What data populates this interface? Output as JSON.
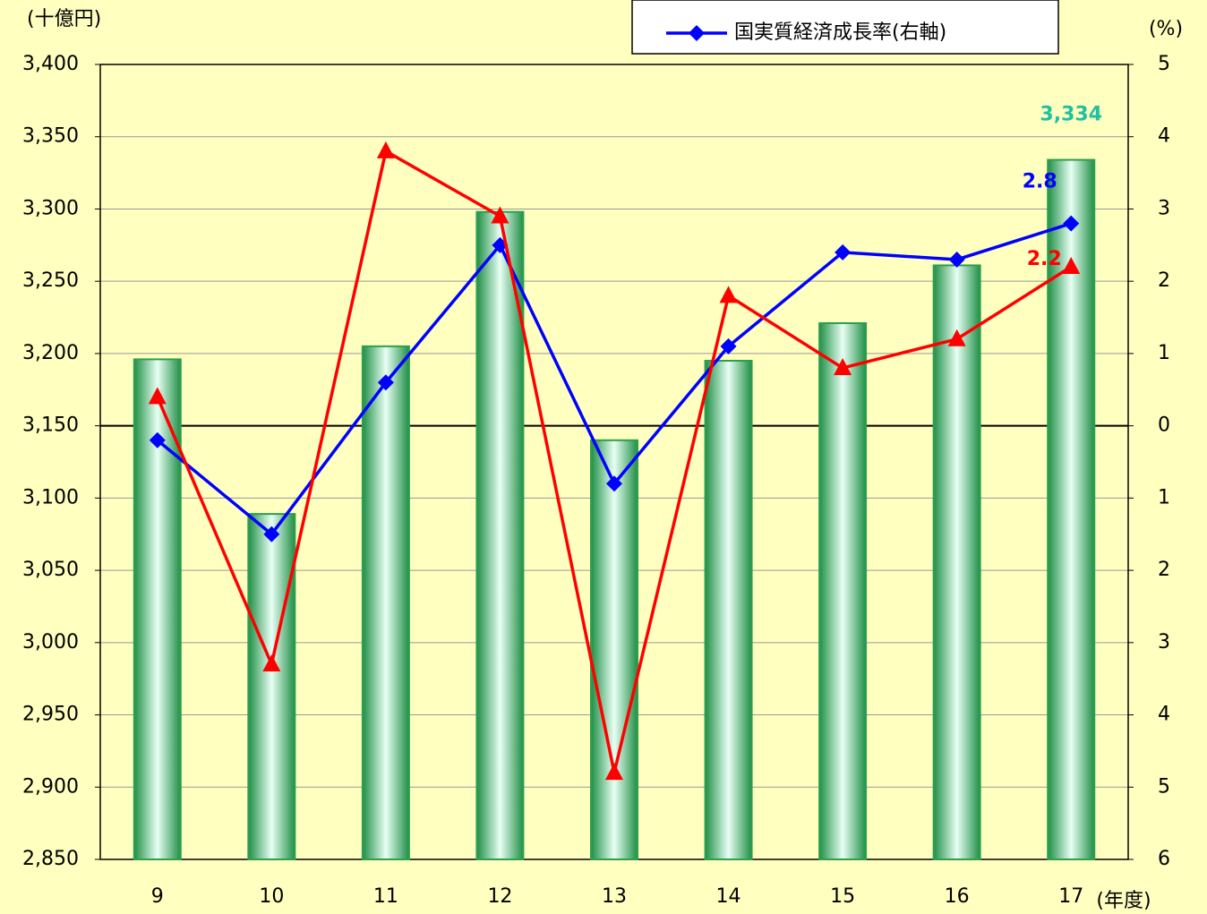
{
  "chart_data": {
    "type": "bar",
    "categories": [
      "9",
      "10",
      "11",
      "12",
      "13",
      "14",
      "15",
      "16",
      "17"
    ],
    "series": [
      {
        "type": "bar",
        "color": "#2e9e50",
        "values": [
          3196,
          3089,
          3205,
          3298,
          3140,
          3195,
          3221,
          3261,
          3334
        ],
        "value_labels": [
          null,
          null,
          null,
          null,
          null,
          null,
          null,
          null,
          "3,334"
        ],
        "label_color": "#20c0a0"
      },
      {
        "name": "国実質経済成長率(右軸)",
        "type": "line",
        "axis": "y2",
        "color": "#0000ff",
        "marker": "diamond",
        "values": [
          -0.2,
          -1.5,
          0.6,
          2.5,
          -0.8,
          1.1,
          2.4,
          2.3,
          2.8
        ],
        "value_labels": [
          null,
          null,
          null,
          null,
          null,
          null,
          null,
          null,
          "2.8"
        ]
      },
      {
        "type": "line",
        "axis": "y2",
        "color": "#ff0000",
        "marker": "triangle",
        "values": [
          0.4,
          -3.3,
          3.8,
          2.9,
          -4.8,
          1.8,
          0.8,
          1.2,
          2.2
        ],
        "value_labels": [
          null,
          null,
          null,
          null,
          null,
          null,
          null,
          null,
          "2.2"
        ]
      }
    ],
    "ylabel": "(十億円)",
    "y2label": "(%)",
    "xlabel": "(年度)",
    "ylim": [
      2850,
      3400
    ],
    "yticks": [
      {
        "value": 2850,
        "label": "2,850"
      },
      {
        "value": 2900,
        "label": "2,900"
      },
      {
        "value": 2950,
        "label": "2,950"
      },
      {
        "value": 3000,
        "label": "3,000"
      },
      {
        "value": 3050,
        "label": "3,050"
      },
      {
        "value": 3100,
        "label": "3,100"
      },
      {
        "value": 3150,
        "label": "3,150"
      },
      {
        "value": 3200,
        "label": "3,200"
      },
      {
        "value": 3250,
        "label": "3,250"
      },
      {
        "value": 3300,
        "label": "3,300"
      },
      {
        "value": 3350,
        "label": "3,350"
      },
      {
        "value": 3400,
        "label": "3,400"
      }
    ],
    "y2lim": [
      -6,
      5
    ],
    "y2ticks": [
      {
        "value": -6,
        "label": "6"
      },
      {
        "value": -5,
        "label": "5"
      },
      {
        "value": -4,
        "label": "4"
      },
      {
        "value": -3,
        "label": "3"
      },
      {
        "value": -2,
        "label": "2"
      },
      {
        "value": -1,
        "label": "1"
      },
      0,
      1,
      2,
      3,
      4,
      5
    ],
    "grid": true,
    "legend": "top-right"
  }
}
